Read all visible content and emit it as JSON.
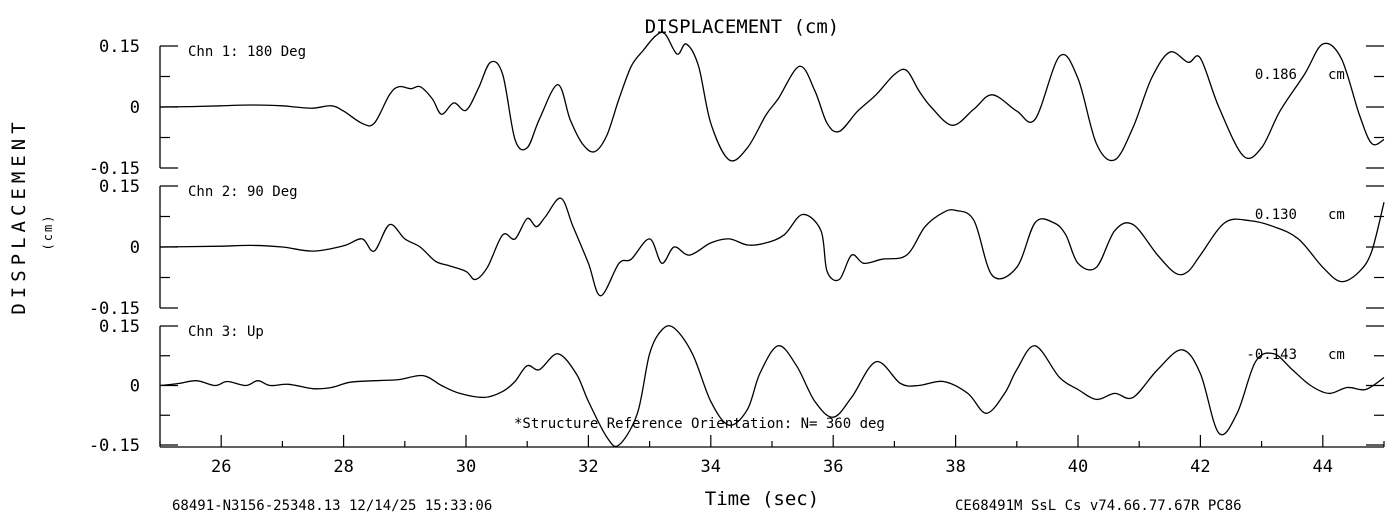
{
  "chart_data": {
    "type": "line",
    "title": "DISPLACEMENT (cm)",
    "ylabel": "DISPLACEMENT",
    "ylabel_unit": "(cm)",
    "xlabel": "Time (sec)",
    "xlim": [
      25,
      45
    ],
    "xticks": [
      26,
      28,
      30,
      32,
      34,
      36,
      38,
      40,
      42,
      44
    ],
    "xtick_labels": [
      "26",
      "28",
      "30",
      "32",
      "34",
      "36",
      "38",
      "40",
      "42",
      "44"
    ],
    "ylim": [
      -0.15,
      0.15
    ],
    "ytick_labels": [
      "0.15",
      "0",
      "-0.15"
    ],
    "grid": false,
    "annotation": "*Structure Reference Orientation: N= 360 deg",
    "footer_left": "68491-N3156-25348.13 12/14/25 15:33:06",
    "footer_right": "CE68491M  SsL Cs  v74.66.77.67R PC86",
    "series": [
      {
        "name": "Chn 1: 180 Deg",
        "peak_label": "0.186",
        "unit": "cm",
        "x": [
          25.0,
          25.5,
          26.0,
          26.5,
          27.0,
          27.2,
          27.5,
          27.8,
          28.0,
          28.3,
          28.5,
          28.75,
          28.9,
          29.1,
          29.25,
          29.45,
          29.6,
          29.8,
          30.0,
          30.2,
          30.4,
          30.6,
          30.8,
          31.0,
          31.2,
          31.5,
          31.7,
          31.9,
          32.1,
          32.3,
          32.5,
          32.7,
          32.9,
          33.1,
          33.25,
          33.45,
          33.6,
          33.8,
          34.0,
          34.3,
          34.6,
          34.9,
          35.1,
          35.45,
          35.7,
          35.9,
          36.1,
          36.4,
          36.7,
          37.0,
          37.2,
          37.4,
          37.6,
          37.95,
          38.3,
          38.6,
          39.0,
          39.3,
          39.7,
          40.0,
          40.3,
          40.6,
          40.9,
          41.2,
          41.5,
          41.8,
          42.0,
          42.3,
          42.7,
          43.0,
          43.3,
          43.7,
          44.0,
          44.3,
          44.6,
          44.8,
          45.0
        ],
        "values": [
          0.0,
          0.001,
          0.003,
          0.005,
          0.003,
          0.0,
          -0.003,
          0.003,
          -0.01,
          -0.04,
          -0.04,
          0.03,
          0.05,
          0.045,
          0.05,
          0.02,
          -0.018,
          0.01,
          -0.008,
          0.045,
          0.11,
          0.08,
          -0.08,
          -0.1,
          -0.03,
          0.055,
          -0.03,
          -0.09,
          -0.11,
          -0.07,
          0.02,
          0.1,
          0.14,
          0.175,
          0.18,
          0.13,
          0.155,
          0.1,
          -0.04,
          -0.13,
          -0.1,
          -0.02,
          0.02,
          0.1,
          0.04,
          -0.04,
          -0.06,
          -0.01,
          0.03,
          0.08,
          0.09,
          0.04,
          0.0,
          -0.045,
          -0.005,
          0.03,
          -0.01,
          -0.03,
          0.125,
          0.07,
          -0.09,
          -0.13,
          -0.05,
          0.07,
          0.135,
          0.11,
          0.12,
          0.0,
          -0.12,
          -0.1,
          -0.01,
          0.08,
          0.155,
          0.12,
          -0.02,
          -0.09,
          -0.08
        ]
      },
      {
        "name": "Chn 2: 90 Deg",
        "peak_label": "0.130",
        "unit": "cm",
        "x": [
          25.0,
          25.5,
          26.0,
          26.5,
          27.0,
          27.5,
          28.0,
          28.3,
          28.5,
          28.75,
          29.0,
          29.25,
          29.5,
          29.7,
          30.0,
          30.15,
          30.35,
          30.6,
          30.8,
          31.0,
          31.15,
          31.3,
          31.55,
          31.75,
          32.0,
          32.2,
          32.5,
          32.7,
          33.0,
          33.2,
          33.4,
          33.65,
          34.0,
          34.3,
          34.6,
          34.9,
          35.2,
          35.5,
          35.8,
          35.9,
          36.1,
          36.3,
          36.5,
          36.8,
          37.2,
          37.5,
          37.8,
          38.0,
          38.3,
          38.6,
          39.0,
          39.3,
          39.6,
          39.8,
          40.0,
          40.3,
          40.6,
          40.9,
          41.3,
          41.6,
          41.8,
          42.0,
          42.4,
          42.8,
          43.2,
          43.6,
          44.0,
          44.3,
          44.6,
          44.8,
          45.0
        ],
        "values": [
          0.0,
          0.001,
          0.002,
          0.004,
          0.0,
          -0.01,
          0.003,
          0.02,
          -0.01,
          0.055,
          0.02,
          0.0,
          -0.035,
          -0.045,
          -0.06,
          -0.08,
          -0.05,
          0.03,
          0.02,
          0.07,
          0.05,
          0.075,
          0.12,
          0.05,
          -0.04,
          -0.12,
          -0.04,
          -0.03,
          0.02,
          -0.04,
          0.0,
          -0.02,
          0.01,
          0.02,
          0.005,
          0.01,
          0.03,
          0.08,
          0.04,
          -0.06,
          -0.08,
          -0.02,
          -0.04,
          -0.03,
          -0.02,
          0.05,
          0.085,
          0.09,
          0.065,
          -0.07,
          -0.05,
          0.06,
          0.06,
          0.03,
          -0.04,
          -0.05,
          0.04,
          0.055,
          -0.02,
          -0.065,
          -0.06,
          -0.02,
          0.06,
          0.065,
          0.05,
          0.02,
          -0.05,
          -0.085,
          -0.06,
          -0.01,
          0.11
        ]
      },
      {
        "name": "Chn 3: Up",
        "peak_label": "-0.143",
        "unit": "cm",
        "x": [
          25.0,
          25.3,
          25.6,
          25.9,
          26.1,
          26.4,
          26.6,
          26.8,
          27.1,
          27.5,
          27.8,
          28.1,
          28.5,
          28.9,
          29.3,
          29.6,
          29.9,
          30.3,
          30.6,
          30.8,
          31.0,
          31.2,
          31.5,
          31.8,
          32.0,
          32.3,
          32.5,
          32.8,
          33.0,
          33.2,
          33.4,
          33.7,
          34.0,
          34.3,
          34.6,
          34.8,
          35.1,
          35.4,
          35.7,
          36.0,
          36.3,
          36.7,
          37.1,
          37.4,
          37.8,
          38.2,
          38.5,
          38.8,
          39.0,
          39.3,
          39.7,
          40.0,
          40.3,
          40.6,
          40.9,
          41.3,
          41.7,
          42.0,
          42.3,
          42.6,
          42.9,
          43.2,
          43.5,
          43.8,
          44.1,
          44.4,
          44.7,
          45.0
        ],
        "values": [
          0.0,
          0.005,
          0.012,
          0.0,
          0.01,
          0.0,
          0.012,
          0.0,
          0.003,
          -0.008,
          -0.005,
          0.008,
          0.012,
          0.015,
          0.025,
          0.0,
          -0.02,
          -0.03,
          -0.015,
          0.01,
          0.05,
          0.04,
          0.08,
          0.03,
          -0.04,
          -0.13,
          -0.15,
          -0.07,
          0.08,
          0.14,
          0.145,
          0.08,
          -0.04,
          -0.1,
          -0.06,
          0.03,
          0.1,
          0.05,
          -0.04,
          -0.08,
          -0.03,
          0.06,
          0.005,
          0.0,
          0.01,
          -0.02,
          -0.07,
          -0.02,
          0.04,
          0.1,
          0.02,
          -0.01,
          -0.035,
          -0.02,
          -0.03,
          0.04,
          0.09,
          0.03,
          -0.12,
          -0.07,
          0.06,
          0.08,
          0.04,
          0.0,
          -0.02,
          -0.005,
          -0.01,
          0.02
        ]
      }
    ]
  }
}
